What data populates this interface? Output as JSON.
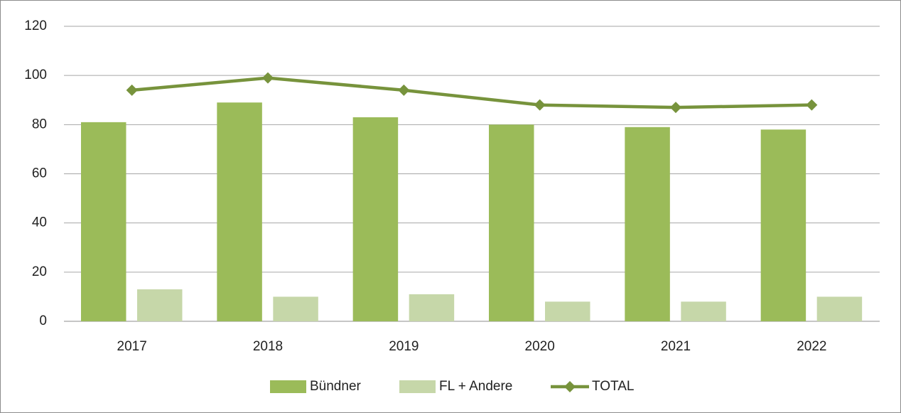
{
  "chart_data": {
    "type": "bar",
    "categories": [
      "2017",
      "2018",
      "2019",
      "2020",
      "2021",
      "2022"
    ],
    "series": [
      {
        "name": "Bündner",
        "color": "#9bbb59",
        "values": [
          81,
          89,
          83,
          80,
          79,
          78
        ]
      },
      {
        "name": "FL + Andere",
        "color": "#c6d7a9",
        "values": [
          13,
          10,
          11,
          8,
          8,
          10
        ]
      },
      {
        "name": "TOTAL",
        "type": "line",
        "color": "#77933c",
        "values": [
          94,
          99,
          94,
          88,
          87,
          88
        ]
      }
    ],
    "ylim": [
      0,
      120
    ],
    "yticks": [
      0,
      20,
      40,
      60,
      80,
      100,
      120
    ],
    "grid": true,
    "legend": "bottom"
  }
}
